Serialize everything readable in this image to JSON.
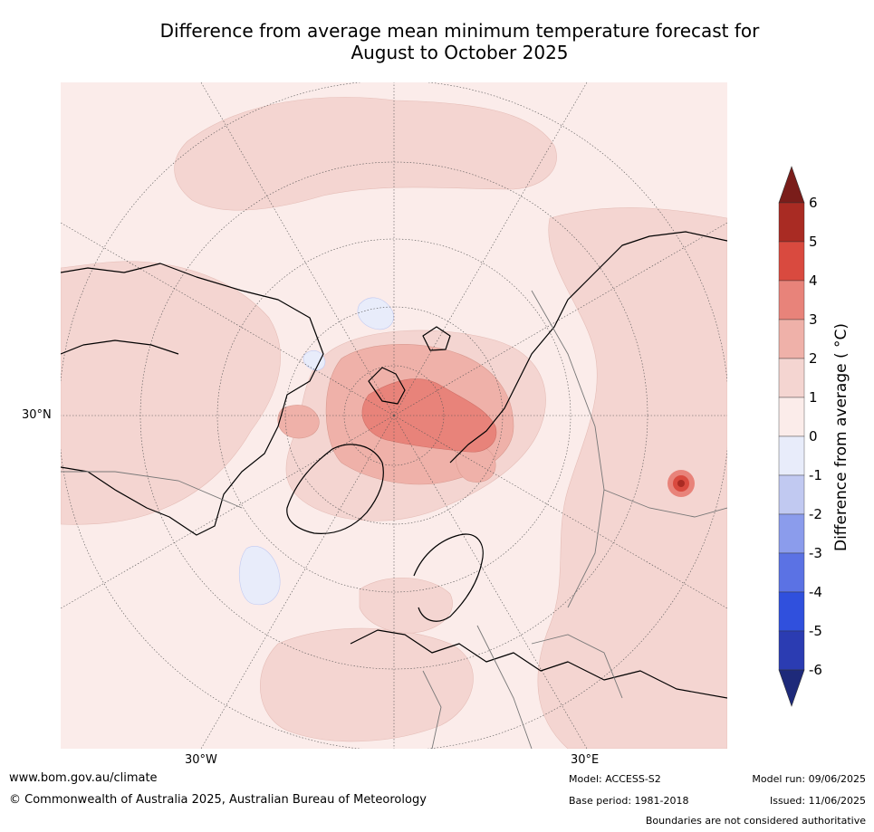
{
  "title": {
    "line1": "Difference from average mean minimum temperature forecast for",
    "line2": "August to October 2025"
  },
  "map": {
    "projection": "north-polar stereographic",
    "lat_label_left": "30°N",
    "lon_label_left": "30°W",
    "lon_label_right": "30°E"
  },
  "colorbar": {
    "label": "Difference from average ( °C)",
    "ticks": [
      "6",
      "5",
      "4",
      "3",
      "2",
      "1",
      "0",
      "-1",
      "-2",
      "-3",
      "-4",
      "-5",
      "-6"
    ],
    "bands": [
      {
        "range": "above 6",
        "color": "#7a1d1a"
      },
      {
        "range": "5 to 6",
        "color": "#a92b23"
      },
      {
        "range": "4 to 5",
        "color": "#d94a3f"
      },
      {
        "range": "3 to 4",
        "color": "#e8837a"
      },
      {
        "range": "2 to 3",
        "color": "#efb1a9"
      },
      {
        "range": "1 to 2",
        "color": "#f4d5d1"
      },
      {
        "range": "0 to 1",
        "color": "#fbecea"
      },
      {
        "range": "-1 to 0",
        "color": "#e8ecfa"
      },
      {
        "range": "-2 to -1",
        "color": "#c1c9f1"
      },
      {
        "range": "-3 to -2",
        "color": "#8b9cec"
      },
      {
        "range": "-4 to -3",
        "color": "#5b72e4"
      },
      {
        "range": "-5 to -4",
        "color": "#3050dd"
      },
      {
        "range": "-6 to -5",
        "color": "#2b3cb2"
      },
      {
        "range": "below -6",
        "color": "#1e2a7a"
      }
    ]
  },
  "footer": {
    "url": "www.bom.gov.au/climate",
    "copyright": "© Commonwealth of Australia 2025, Australian Bureau of Meteorology",
    "model": "Model: ACCESS-S2",
    "base_period": "Base period: 1981-2018",
    "model_run": "Model run: 09/06/2025",
    "issued": "Issued: 11/06/2025",
    "disclaimer": "Boundaries are not considered authoritative"
  }
}
